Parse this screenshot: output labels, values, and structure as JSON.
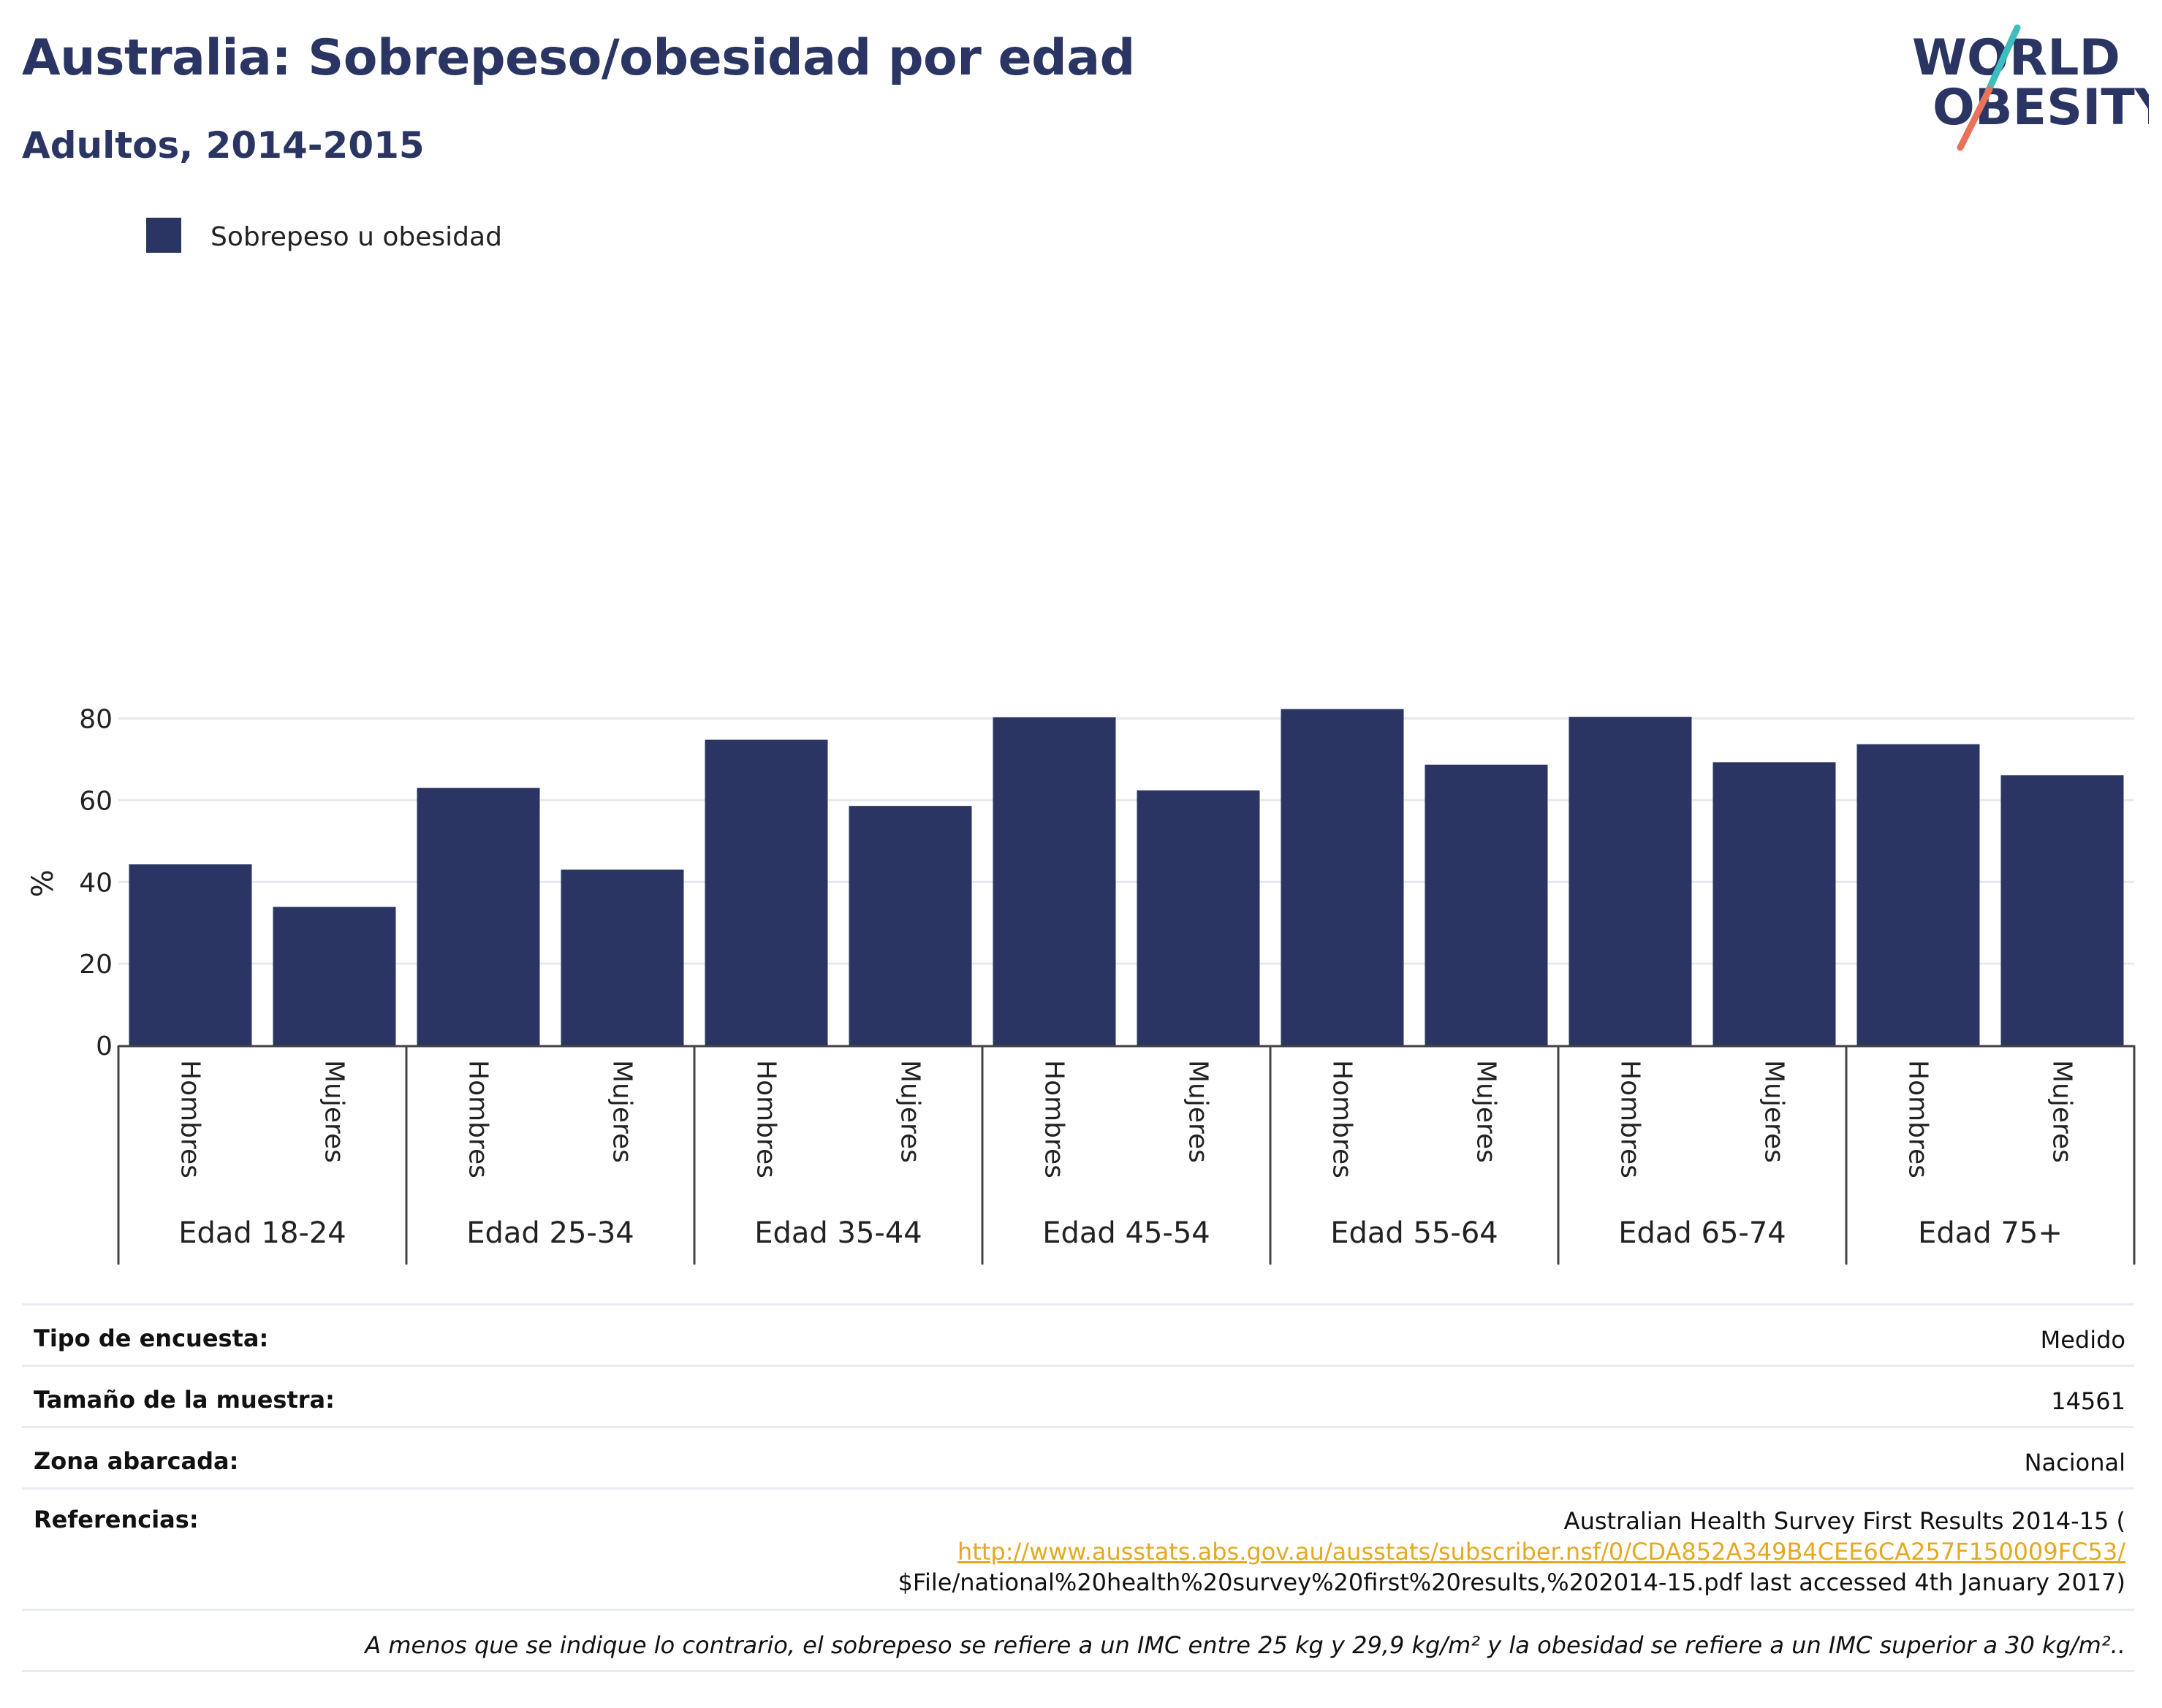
{
  "header": {
    "title": "Australia: Sobrepeso/obesidad por edad",
    "subtitle": "Adultos, 2014-2015"
  },
  "logo": {
    "line1": "WORLD",
    "line2": "OBESITY",
    "accent_colors": [
      "#3dbdbd",
      "#e8725a"
    ],
    "text_color": "#2a3563"
  },
  "chart_data": {
    "type": "bar",
    "ylabel": "%",
    "ylim": [
      0,
      90
    ],
    "yticks": [
      0,
      20,
      40,
      60,
      80
    ],
    "grid": true,
    "legend_position": "top-left",
    "bar_color": "#2a3563",
    "groups": [
      "Edad 18-24",
      "Edad 25-34",
      "Edad 35-44",
      "Edad 45-54",
      "Edad 55-64",
      "Edad 65-74",
      "Edad 75+"
    ],
    "subcategories": [
      "Hombres",
      "Mujeres"
    ],
    "series": [
      {
        "name": "Sobrepeso u obesidad",
        "values": [
          44.3,
          33.9,
          63.0,
          43.0,
          74.8,
          58.6,
          80.3,
          62.4,
          82.3,
          68.7,
          80.4,
          69.3,
          73.7,
          66.1
        ]
      }
    ]
  },
  "meta": {
    "survey_type_label": "Tipo de encuesta:",
    "survey_type_value": "Medido",
    "sample_size_label": "Tamaño de la muestra:",
    "sample_size_value": "14561",
    "area_label": "Zona abarcada:",
    "area_value": "Nacional",
    "references_label": "Referencias:",
    "references_line1": "Australian Health Survey First Results 2014-15 (",
    "references_link": "http://www.ausstats.abs.gov.au/ausstats/subscriber.nsf/0/CDA852A349B4CEE6CA257F150009FC53/",
    "references_line3": "$File/national%20health%20survey%20first%20results,%202014-15.pdf last accessed 4th January 2017)",
    "note": "A menos que se indique lo contrario, el sobrepeso se refiere a un IMC entre 25 kg y 29,9 kg/m² y la obesidad se refiere a un IMC superior a 30 kg/m²..",
    "link_color": "#e6a820"
  }
}
